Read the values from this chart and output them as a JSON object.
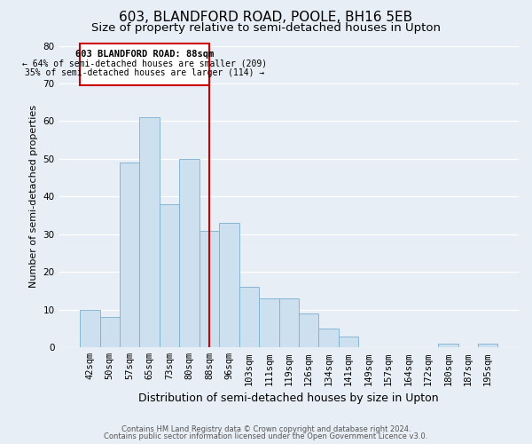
{
  "title": "603, BLANDFORD ROAD, POOLE, BH16 5EB",
  "subtitle": "Size of property relative to semi-detached houses in Upton",
  "xlabel": "Distribution of semi-detached houses by size in Upton",
  "ylabel": "Number of semi-detached properties",
  "categories": [
    "42sqm",
    "50sqm",
    "57sqm",
    "65sqm",
    "73sqm",
    "80sqm",
    "88sqm",
    "96sqm",
    "103sqm",
    "111sqm",
    "119sqm",
    "126sqm",
    "134sqm",
    "141sqm",
    "149sqm",
    "157sqm",
    "164sqm",
    "172sqm",
    "180sqm",
    "187sqm",
    "195sqm"
  ],
  "values": [
    10,
    8,
    49,
    61,
    38,
    50,
    31,
    33,
    16,
    13,
    13,
    9,
    5,
    3,
    0,
    0,
    0,
    0,
    1,
    0,
    1
  ],
  "bar_fill_color": "#cce0f0",
  "bar_edge_color": "#7aafcf",
  "highlight_index": 6,
  "highlight_line_color": "#cc0000",
  "highlight_box_color": "#cc0000",
  "ylim": [
    0,
    80
  ],
  "yticks": [
    0,
    10,
    20,
    30,
    40,
    50,
    60,
    70,
    80
  ],
  "annotation_title": "603 BLANDFORD ROAD: 88sqm",
  "annotation_line1": "← 64% of semi-detached houses are smaller (209)",
  "annotation_line2": "35% of semi-detached houses are larger (114) →",
  "footnote1": "Contains HM Land Registry data © Crown copyright and database right 2024.",
  "footnote2": "Contains public sector information licensed under the Open Government Licence v3.0.",
  "background_color": "#e8eef5",
  "grid_color": "#ffffff",
  "title_fontsize": 11,
  "subtitle_fontsize": 9.5,
  "xlabel_fontsize": 9,
  "ylabel_fontsize": 8,
  "tick_fontsize": 7.5
}
